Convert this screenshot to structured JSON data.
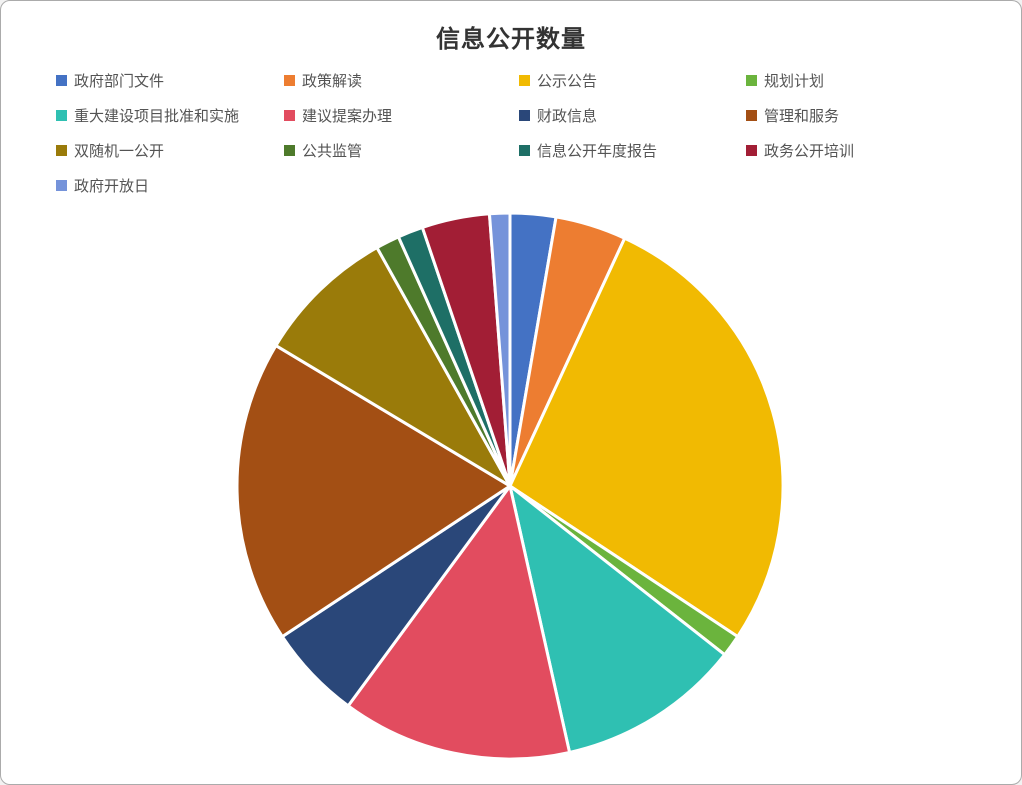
{
  "page": {
    "background_color": "#ffffff",
    "frame_border_color": "#ababab"
  },
  "chart_data": {
    "type": "pie",
    "title": "信息公开数量",
    "title_color": "#333333",
    "legend_position": "top",
    "legend_text_color": "#545454",
    "slice_border_color": "#ffffff",
    "start_angle_deg": 0,
    "direction": "clockwise",
    "values_are": "estimated_percent",
    "labels": [
      "政府部门文件",
      "政策解读",
      "公示公告",
      "规划计划",
      "重大建设项目批准和实施",
      "建议提案办理",
      "财政信息",
      "管理和服务",
      "双随机一公开",
      "公共监管",
      "信息公开年度报告",
      "政务公开培训",
      "政府开放日"
    ],
    "values": [
      2.7,
      4.2,
      27.4,
      1.3,
      10.9,
      13.6,
      5.6,
      17.9,
      8.3,
      1.4,
      1.5,
      4.0,
      1.2
    ],
    "colors": [
      "#4472C4",
      "#ED7D31",
      "#F1BA02",
      "#6BB43D",
      "#2FC0B2",
      "#E24C5F",
      "#2A4779",
      "#A34F14",
      "#9A7B0A",
      "#4E7A2B",
      "#1E6F66",
      "#A21E35",
      "#7593DA"
    ]
  }
}
